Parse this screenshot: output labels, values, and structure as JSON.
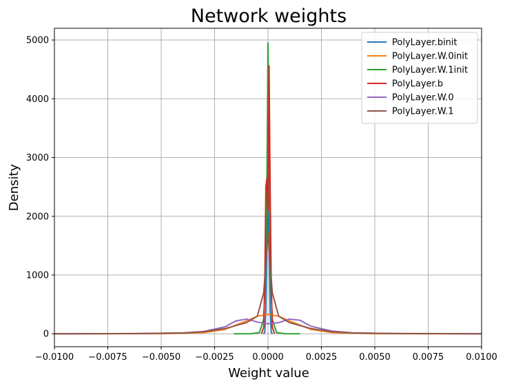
{
  "chart_data": {
    "type": "line",
    "title": "Network weights",
    "xlabel": "Weight value",
    "ylabel": "Density",
    "xlim": [
      -0.01,
      0.01
    ],
    "ylim": [
      -220,
      5200
    ],
    "xticks": [
      -0.01,
      -0.0075,
      -0.005,
      -0.0025,
      0.0,
      0.0025,
      0.005,
      0.0075,
      0.01
    ],
    "xtick_labels": [
      "−0.0100",
      "−0.0075",
      "−0.0050",
      "−0.0025",
      "0.0000",
      "0.0025",
      "0.0050",
      "0.0075",
      "0.0100"
    ],
    "yticks": [
      0,
      1000,
      2000,
      3000,
      4000,
      5000
    ],
    "ytick_labels": [
      "0",
      "1000",
      "2000",
      "3000",
      "4000",
      "5000"
    ],
    "grid": true,
    "legend_position": "top-right",
    "series": [
      {
        "name": "PolyLayer.binit",
        "color": "#1f77b4",
        "x": [
          -0.0002,
          -0.00015,
          -0.0001,
          -5e-05,
          0.0,
          5e-05,
          0.0001,
          0.00015,
          0.0002
        ],
        "y": [
          0,
          30,
          400,
          1600,
          2100,
          1600,
          400,
          30,
          0
        ]
      },
      {
        "name": "PolyLayer.W.0init",
        "color": "#ff7f0e",
        "x": [
          -0.01,
          -0.005,
          -0.003,
          -0.002,
          -0.001,
          -0.0005,
          0.0,
          0.0005,
          0.001,
          0.002,
          0.003,
          0.005,
          0.01
        ],
        "y": [
          0,
          1,
          20,
          75,
          220,
          300,
          330,
          300,
          220,
          75,
          20,
          1,
          0
        ]
      },
      {
        "name": "PolyLayer.W.1init",
        "color": "#2ca02c",
        "x": [
          -0.0016,
          -0.0008,
          -0.0004,
          -0.0002,
          -0.0001,
          -5e-05,
          0.0,
          5e-05,
          0.0001,
          0.0002,
          0.0004,
          0.0008,
          0.0015
        ],
        "y": [
          0,
          2,
          20,
          250,
          1200,
          2600,
          4950,
          2600,
          1200,
          250,
          20,
          2,
          0
        ]
      },
      {
        "name": "PolyLayer.b",
        "color": "#d62728",
        "x": [
          -0.0003,
          -0.0002,
          -0.00015,
          -0.0001,
          -5e-05,
          0.0,
          5e-05,
          0.0001,
          0.00015,
          0.0002,
          0.0003
        ],
        "y": [
          0,
          120,
          900,
          2500,
          2650,
          2100,
          4560,
          2500,
          900,
          120,
          0
        ]
      },
      {
        "name": "PolyLayer.W.0",
        "color": "#9467bd",
        "x": [
          -0.01,
          -0.006,
          -0.004,
          -0.003,
          -0.002,
          -0.0015,
          -0.001,
          -0.0005,
          0.0,
          0.0005,
          0.001,
          0.0015,
          0.002,
          0.003,
          0.004,
          0.006,
          0.01
        ],
        "y": [
          0,
          5,
          15,
          40,
          120,
          220,
          250,
          200,
          170,
          190,
          250,
          230,
          130,
          45,
          15,
          5,
          0
        ]
      },
      {
        "name": "PolyLayer.W.1",
        "color": "#8c564b",
        "x": [
          -0.01,
          -0.006,
          -0.004,
          -0.003,
          -0.002,
          -0.001,
          -0.0005,
          -0.0002,
          0.0,
          0.0002,
          0.0005,
          0.001,
          0.002,
          0.003,
          0.004,
          0.006,
          0.01
        ],
        "y": [
          0,
          5,
          15,
          35,
          90,
          190,
          300,
          700,
          1720,
          700,
          300,
          190,
          90,
          35,
          15,
          5,
          0
        ]
      }
    ]
  }
}
